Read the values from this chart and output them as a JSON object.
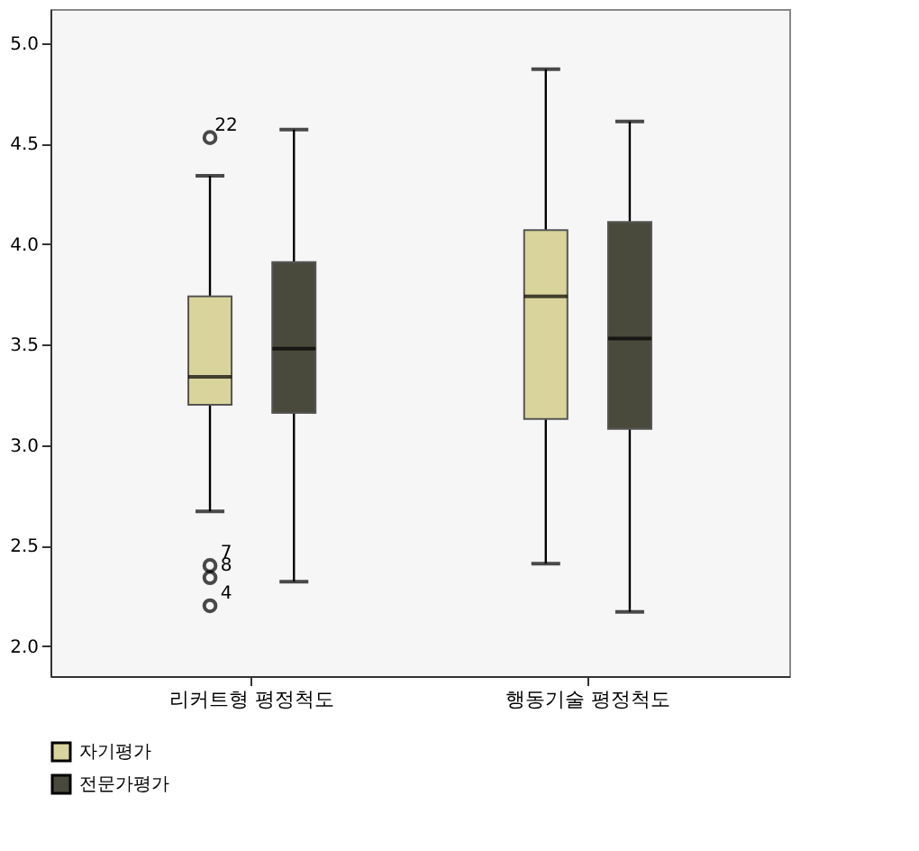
{
  "chart_data": {
    "type": "box",
    "categories": [
      "리커트형 평정척도",
      "행동기술 평정척도"
    ],
    "series": [
      {
        "name": "자기평가",
        "color": "#d9d49b",
        "boxes": [
          {
            "low": 2.67,
            "q1": 3.2,
            "median": 3.34,
            "q3": 3.74,
            "high": 4.34,
            "outliers": [
              4.53,
              2.4,
              2.34,
              2.2
            ]
          },
          {
            "low": 2.41,
            "q1": 3.13,
            "median": 3.74,
            "q3": 4.07,
            "high": 4.87
          }
        ]
      },
      {
        "name": "전문가평가",
        "color": "#4a4a3c",
        "boxes": [
          {
            "low": 2.32,
            "q1": 3.16,
            "median": 3.48,
            "q3": 3.91,
            "high": 4.57
          },
          {
            "low": 2.17,
            "q1": 3.08,
            "median": 3.53,
            "q3": 4.11,
            "high": 4.61
          }
        ]
      }
    ],
    "annotations": [
      "22",
      "7",
      "8",
      "4"
    ],
    "ylim": [
      1.85,
      5.17
    ],
    "yticks": [
      {
        "value": 2,
        "label": "2.0"
      },
      2.5,
      {
        "value": 3,
        "label": "3.0"
      },
      3.5,
      {
        "value": 4,
        "label": "4.0"
      },
      4.5,
      {
        "value": 5,
        "label": "5.0"
      }
    ],
    "grid": false,
    "legend": "bottom"
  }
}
